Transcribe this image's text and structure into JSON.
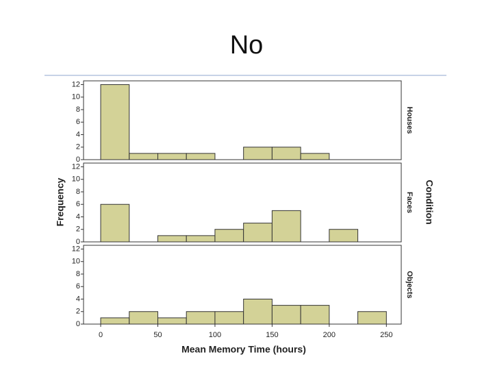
{
  "chart_data": {
    "type": "histogram",
    "title": "No",
    "x_label": "Mean Memory Time (hours)",
    "y_label": "Frequency",
    "facet_label": "Condition",
    "bins": [
      0,
      25,
      50,
      75,
      100,
      125,
      150,
      175,
      200,
      225,
      250
    ],
    "facets": [
      {
        "name": "Houses",
        "values": [
          12,
          1,
          1,
          1,
          0,
          2,
          2,
          1,
          0,
          0
        ]
      },
      {
        "name": "Faces",
        "values": [
          6,
          0,
          1,
          1,
          2,
          3,
          5,
          0,
          2,
          0
        ]
      },
      {
        "name": "Objects",
        "values": [
          1,
          2,
          1,
          2,
          2,
          4,
          3,
          3,
          0,
          2
        ]
      }
    ],
    "color": "#d3d297",
    "xlim": [
      -15,
      263
    ],
    "xticks": [
      0,
      50,
      100,
      150,
      200,
      250
    ],
    "ylim": [
      0,
      12.6
    ],
    "yticks": [
      0,
      2,
      4,
      6,
      8,
      10,
      12
    ]
  }
}
